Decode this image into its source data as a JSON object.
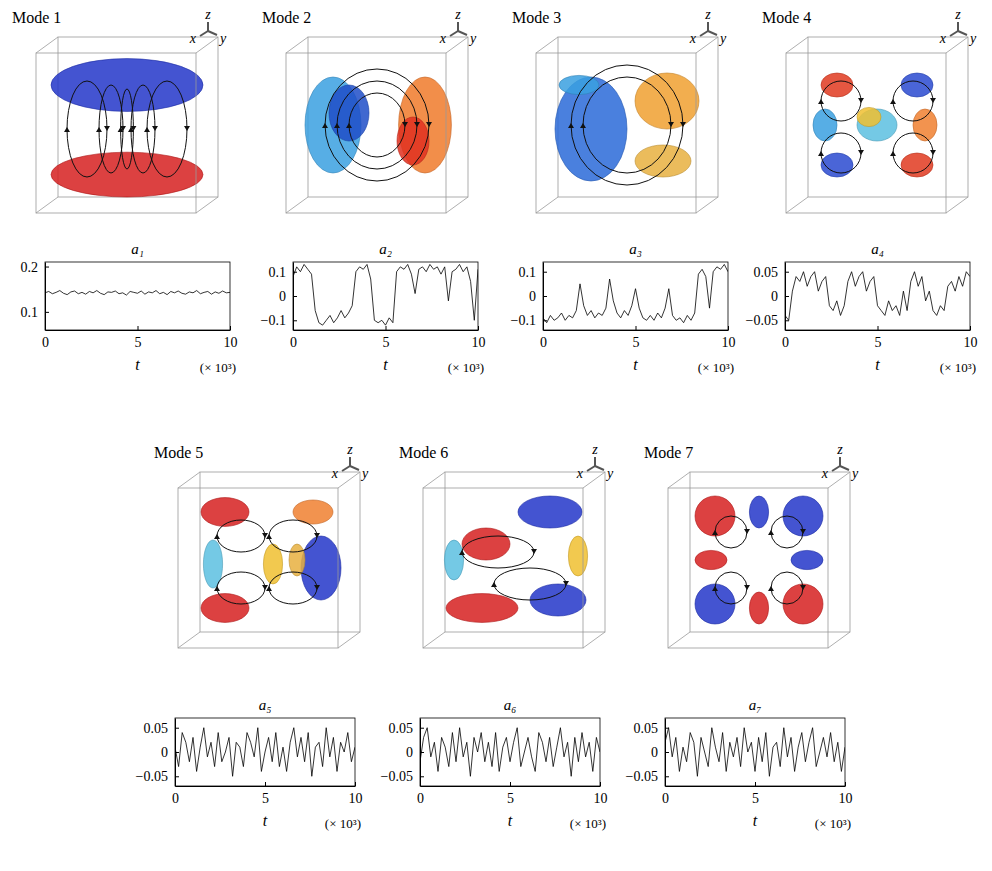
{
  "chart_data": [
    {
      "type": "line",
      "title": "a₁",
      "xlabel": "t",
      "annotations": [
        {
          "text": "Mode 1"
        },
        {
          "text": "z"
        },
        {
          "text": "x"
        },
        {
          "text": "y"
        },
        {
          "text": "(× 10³)"
        }
      ],
      "xlim": [
        0,
        10
      ],
      "xticks": [
        0,
        5,
        10
      ],
      "ylim": [
        0.06,
        0.21
      ],
      "yticks": [
        0.1,
        0.2
      ],
      "x": [
        0,
        0.2,
        0.4,
        0.6,
        0.8,
        1,
        1.2,
        1.4,
        1.6,
        1.8,
        2,
        2.2,
        2.4,
        2.6,
        2.8,
        3,
        3.2,
        3.4,
        3.6,
        3.8,
        4,
        4.2,
        4.4,
        4.6,
        4.8,
        5,
        5.2,
        5.4,
        5.6,
        5.8,
        6,
        6.2,
        6.4,
        6.6,
        6.8,
        7,
        7.2,
        7.4,
        7.6,
        7.8,
        8,
        8.2,
        8.4,
        8.6,
        8.8,
        9,
        9.2,
        9.4,
        9.6,
        9.8,
        10
      ],
      "values": [
        0.142,
        0.145,
        0.14,
        0.143,
        0.147,
        0.141,
        0.138,
        0.144,
        0.146,
        0.14,
        0.143,
        0.139,
        0.145,
        0.142,
        0.147,
        0.141,
        0.138,
        0.144,
        0.143,
        0.146,
        0.14,
        0.142,
        0.137,
        0.145,
        0.143,
        0.141,
        0.146,
        0.139,
        0.144,
        0.142,
        0.147,
        0.14,
        0.143,
        0.138,
        0.145,
        0.142,
        0.146,
        0.141,
        0.139,
        0.144,
        0.142,
        0.147,
        0.14,
        0.143,
        0.145,
        0.139,
        0.144,
        0.141,
        0.146,
        0.142,
        0.143
      ]
    },
    {
      "type": "line",
      "title": "a₂",
      "xlabel": "t",
      "annotations": [
        {
          "text": "Mode 2"
        },
        {
          "text": "z"
        },
        {
          "text": "x"
        },
        {
          "text": "y"
        },
        {
          "text": "(× 10³)"
        }
      ],
      "xlim": [
        0,
        10
      ],
      "xticks": [
        0,
        5,
        10
      ],
      "ylim": [
        -0.14,
        0.14
      ],
      "yticks": [
        {
          "value": -0.1,
          "label": "−0.1"
        },
        0,
        0.1
      ],
      "x": [
        0,
        0.2,
        0.4,
        0.6,
        0.8,
        1,
        1.2,
        1.4,
        1.6,
        1.8,
        2,
        2.2,
        2.4,
        2.6,
        2.8,
        3,
        3.2,
        3.4,
        3.6,
        3.8,
        4,
        4.2,
        4.4,
        4.6,
        4.8,
        5,
        5.2,
        5.4,
        5.6,
        5.8,
        6,
        6.2,
        6.4,
        6.6,
        6.8,
        7,
        7.2,
        7.4,
        7.6,
        7.8,
        8,
        8.2,
        8.4,
        8.6,
        8.8,
        9,
        9.2,
        9.4,
        9.6,
        9.8,
        10
      ],
      "values": [
        0.08,
        0.12,
        0.1,
        0.13,
        0.11,
        0.09,
        -0.06,
        -0.11,
        -0.12,
        -0.1,
        -0.08,
        -0.11,
        -0.09,
        -0.06,
        -0.09,
        -0.07,
        -0.04,
        0.1,
        0.12,
        0.11,
        0.13,
        0.07,
        -0.1,
        -0.11,
        -0.1,
        -0.12,
        -0.09,
        -0.11,
        0.1,
        0.12,
        0.11,
        0.13,
        0.09,
        0.01,
        0.11,
        0.12,
        0.1,
        0.13,
        0.11,
        0.12,
        0.09,
        0.12,
        -0.02,
        0.1,
        0.11,
        0.13,
        0.1,
        0.12,
        0.06,
        -0.1,
        0.11
      ]
    },
    {
      "type": "line",
      "title": "a₃",
      "xlabel": "t",
      "annotations": [
        {
          "text": "Mode 3"
        },
        {
          "text": "z"
        },
        {
          "text": "x"
        },
        {
          "text": "y"
        },
        {
          "text": "(× 10³)"
        }
      ],
      "xlim": [
        0,
        10
      ],
      "xticks": [
        0,
        5,
        10
      ],
      "ylim": [
        -0.14,
        0.14
      ],
      "yticks": [
        {
          "value": -0.1,
          "label": "−0.1"
        },
        0,
        0.1
      ],
      "x": [
        0,
        0.2,
        0.4,
        0.6,
        0.8,
        1,
        1.2,
        1.4,
        1.6,
        1.8,
        2,
        2.2,
        2.4,
        2.6,
        2.8,
        3,
        3.2,
        3.4,
        3.6,
        3.8,
        4,
        4.2,
        4.4,
        4.6,
        4.8,
        5,
        5.2,
        5.4,
        5.6,
        5.8,
        6,
        6.2,
        6.4,
        6.6,
        6.8,
        7,
        7.2,
        7.4,
        7.6,
        7.8,
        8,
        8.2,
        8.4,
        8.6,
        8.8,
        9,
        9.2,
        9.4,
        9.6,
        9.8,
        10
      ],
      "values": [
        -0.09,
        -0.11,
        -0.08,
        -0.1,
        -0.09,
        -0.07,
        -0.1,
        -0.08,
        -0.09,
        -0.06,
        0.05,
        -0.04,
        -0.08,
        -0.06,
        -0.09,
        -0.07,
        -0.08,
        -0.05,
        0.07,
        -0.02,
        -0.07,
        -0.09,
        -0.06,
        -0.08,
        -0.04,
        0.03,
        -0.05,
        -0.09,
        -0.1,
        -0.08,
        -0.1,
        -0.07,
        -0.09,
        -0.05,
        0.03,
        -0.08,
        -0.1,
        -0.09,
        -0.11,
        -0.08,
        -0.1,
        -0.07,
        0.09,
        0.11,
        0.08,
        -0.05,
        0.1,
        0.12,
        0.11,
        0.13,
        0.1
      ]
    },
    {
      "type": "line",
      "title": "a₄",
      "xlabel": "t",
      "annotations": [
        {
          "text": "Mode 4"
        },
        {
          "text": "z"
        },
        {
          "text": "x"
        },
        {
          "text": "y"
        },
        {
          "text": "(× 10³)"
        }
      ],
      "xlim": [
        0,
        10
      ],
      "xticks": [
        0,
        5,
        10
      ],
      "ylim": [
        -0.07,
        0.07
      ],
      "yticks": [
        {
          "value": -0.05,
          "label": "−0.05"
        },
        0,
        0.05
      ],
      "x": [
        0,
        0.2,
        0.4,
        0.6,
        0.8,
        1,
        1.2,
        1.4,
        1.6,
        1.8,
        2,
        2.2,
        2.4,
        2.6,
        2.8,
        3,
        3.2,
        3.4,
        3.6,
        3.8,
        4,
        4.2,
        4.4,
        4.6,
        4.8,
        5,
        5.2,
        5.4,
        5.6,
        5.8,
        6,
        6.2,
        6.4,
        6.6,
        6.8,
        7,
        7.2,
        7.4,
        7.6,
        7.8,
        8,
        8.2,
        8.4,
        8.6,
        8.8,
        9,
        9.2,
        9.4,
        9.6,
        9.8,
        10
      ],
      "values": [
        -0.04,
        -0.05,
        0.01,
        0.04,
        0.03,
        0.05,
        0.02,
        0.04,
        0.05,
        0.01,
        0.03,
        0.04,
        -0.02,
        -0.03,
        -0.01,
        -0.04,
        -0.02,
        0.03,
        0.05,
        0.02,
        0.04,
        0.05,
        0.01,
        0.03,
        0.04,
        -0.02,
        -0.03,
        -0.04,
        -0.01,
        -0.03,
        -0.02,
        -0.04,
        0.01,
        -0.03,
        0.03,
        0.05,
        0.02,
        0.04,
        -0.01,
        0.01,
        -0.03,
        -0.04,
        -0.02,
        -0.03,
        0.02,
        0.03,
        0.01,
        0.04,
        0.02,
        0.05,
        0.04
      ]
    },
    {
      "type": "line",
      "title": "a₅",
      "xlabel": "t",
      "annotations": [
        {
          "text": "Mode 5"
        },
        {
          "text": "z"
        },
        {
          "text": "x"
        },
        {
          "text": "y"
        },
        {
          "text": "(× 10³)"
        }
      ],
      "xlim": [
        0,
        10
      ],
      "xticks": [
        0,
        5,
        10
      ],
      "ylim": [
        -0.07,
        0.07
      ],
      "yticks": [
        {
          "value": -0.05,
          "label": "−0.05"
        },
        0,
        0.05
      ],
      "x": [
        0,
        0.2,
        0.4,
        0.6,
        0.8,
        1,
        1.2,
        1.4,
        1.6,
        1.8,
        2,
        2.2,
        2.4,
        2.6,
        2.8,
        3,
        3.2,
        3.4,
        3.6,
        3.8,
        4,
        4.2,
        4.4,
        4.6,
        4.8,
        5,
        5.2,
        5.4,
        5.6,
        5.8,
        6,
        6.2,
        6.4,
        6.6,
        6.8,
        7,
        7.2,
        7.4,
        7.6,
        7.8,
        8,
        8.2,
        8.4,
        8.6,
        8.8,
        9,
        9.2,
        9.4,
        9.6,
        9.8,
        10
      ],
      "values": [
        0.01,
        -0.03,
        0.04,
        0.02,
        -0.02,
        0.03,
        -0.04,
        0.01,
        0.05,
        -0.01,
        0.02,
        -0.03,
        0.04,
        -0.02,
        0,
        0.03,
        -0.05,
        0.02,
        0.01,
        -0.03,
        0.04,
        0.02,
        -0.01,
        0.05,
        -0.04,
        0,
        0.03,
        -0.02,
        0.04,
        -0.03,
        0.01,
        -0.04,
        0.02,
        0.05,
        -0.01,
        0.03,
        -0.02,
        0.04,
        -0.05,
        0.01,
        0.02,
        -0.03,
        0.05,
        -0.01,
        0.03,
        -0.04,
        0.02,
        0,
        0.04,
        -0.02,
        0.01
      ]
    },
    {
      "type": "line",
      "title": "a₆",
      "xlabel": "t",
      "annotations": [
        {
          "text": "Mode 6"
        },
        {
          "text": "z"
        },
        {
          "text": "x"
        },
        {
          "text": "y"
        },
        {
          "text": "(× 10³)"
        }
      ],
      "xlim": [
        0,
        10
      ],
      "xticks": [
        0,
        5,
        10
      ],
      "ylim": [
        -0.07,
        0.07
      ],
      "yticks": [
        {
          "value": -0.05,
          "label": "−0.05"
        },
        0,
        0.05
      ],
      "x": [
        0,
        0.2,
        0.4,
        0.6,
        0.8,
        1,
        1.2,
        1.4,
        1.6,
        1.8,
        2,
        2.2,
        2.4,
        2.6,
        2.8,
        3,
        3.2,
        3.4,
        3.6,
        3.8,
        4,
        4.2,
        4.4,
        4.6,
        4.8,
        5,
        5.2,
        5.4,
        5.6,
        5.8,
        6,
        6.2,
        6.4,
        6.6,
        6.8,
        7,
        7.2,
        7.4,
        7.6,
        7.8,
        8,
        8.2,
        8.4,
        8.6,
        8.8,
        9,
        9.2,
        9.4,
        9.6,
        9.8,
        10
      ],
      "values": [
        -0.02,
        0.03,
        0.05,
        -0.01,
        0.02,
        -0.04,
        0.03,
        0.01,
        -0.03,
        0.04,
        -0.02,
        0.05,
        -0.01,
        0.02,
        -0.05,
        0.03,
        0,
        0.04,
        -0.02,
        0.02,
        -0.03,
        0.04,
        -0.04,
        0.01,
        0.03,
        -0.02,
        0.02,
        0.05,
        -0.03,
        0,
        0.03,
        -0.01,
        -0.04,
        0.04,
        0.02,
        -0.02,
        0.03,
        -0.03,
        0.01,
        0.05,
        -0.01,
        0.02,
        -0.05,
        0.03,
        -0.02,
        0.04,
        -0.01,
        0.02,
        -0.04,
        0.03,
        0
      ]
    },
    {
      "type": "line",
      "title": "a₇",
      "xlabel": "t",
      "annotations": [
        {
          "text": "Mode 7"
        },
        {
          "text": "z"
        },
        {
          "text": "x"
        },
        {
          "text": "y"
        },
        {
          "text": "(× 10³)"
        }
      ],
      "xlim": [
        0,
        10
      ],
      "xticks": [
        0,
        5,
        10
      ],
      "ylim": [
        -0.07,
        0.07
      ],
      "yticks": [
        {
          "value": -0.05,
          "label": "−0.05"
        },
        0,
        0.05
      ],
      "x": [
        0,
        0.2,
        0.4,
        0.6,
        0.8,
        1,
        1.2,
        1.4,
        1.6,
        1.8,
        2,
        2.2,
        2.4,
        2.6,
        2.8,
        3,
        3.2,
        3.4,
        3.6,
        3.8,
        4,
        4.2,
        4.4,
        4.6,
        4.8,
        5,
        5.2,
        5.4,
        5.6,
        5.8,
        6,
        6.2,
        6.4,
        6.6,
        6.8,
        7,
        7.2,
        7.4,
        7.6,
        7.8,
        8,
        8.2,
        8.4,
        8.6,
        8.8,
        9,
        9.2,
        9.4,
        9.6,
        9.8,
        10
      ],
      "values": [
        0.02,
        0.05,
        -0.01,
        0.03,
        -0.04,
        0.01,
        -0.02,
        0.04,
        0.02,
        -0.05,
        0.03,
        0,
        -0.03,
        0.05,
        0.01,
        -0.02,
        0.04,
        -0.04,
        0.02,
        -0.01,
        0.03,
        -0.03,
        0.05,
        0,
        0.02,
        -0.04,
        0.03,
        -0.02,
        0.04,
        -0.05,
        0.01,
        0.02,
        -0.03,
        0.05,
        -0.01,
        0.03,
        -0.04,
        0.01,
        0.04,
        -0.02,
        0.02,
        0.05,
        -0.03,
        0,
        0.03,
        -0.01,
        0.04,
        -0.02,
        0.02,
        -0.04,
        0.01
      ]
    }
  ]
}
